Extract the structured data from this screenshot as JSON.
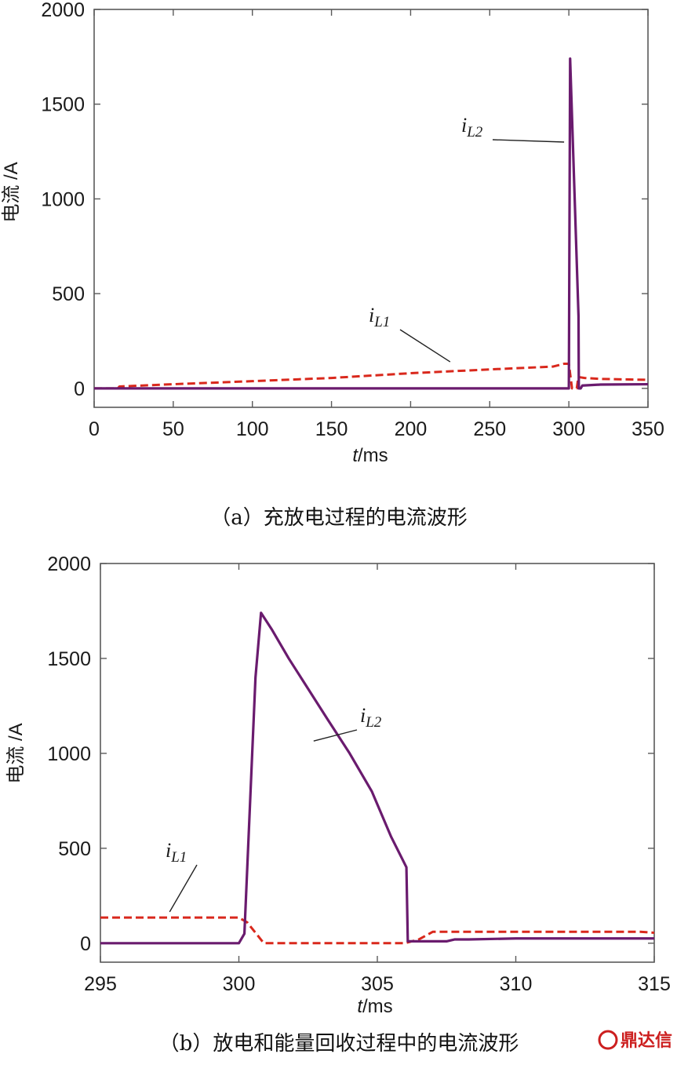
{
  "colors": {
    "iL1": "#d9281c",
    "iL2": "#6a1b6e",
    "axis": "#5a5a5a",
    "watermark": "#cc1f1f"
  },
  "watermark": {
    "text": "鼎达信",
    "icon": "badge-icon"
  },
  "chart_data": [
    {
      "type": "line",
      "caption": "（a）充放电过程的电流波形",
      "ylabel": "电流 /A",
      "xlabel_italic": "t",
      "xlabel_unit": "/ms",
      "xlim": [
        0,
        350
      ],
      "ylim": [
        -100,
        2000
      ],
      "xticks": [
        0,
        50,
        100,
        150,
        200,
        250,
        300,
        350
      ],
      "xtick_labels": [
        "0",
        "50",
        "100",
        "150",
        "200",
        "250",
        "300",
        "350"
      ],
      "yticks": [
        0,
        500,
        1000,
        1500,
        2000
      ],
      "ytick_labels": [
        "0",
        "500",
        "1000",
        "1500",
        "2000"
      ],
      "grid": false,
      "series": [
        {
          "name": "iL1",
          "label_main": "i",
          "label_sub": "L1",
          "style": "dashed",
          "points": [
            [
              0,
              0
            ],
            [
              15,
              0
            ],
            [
              16,
              10
            ],
            [
              50,
              22
            ],
            [
              100,
              38
            ],
            [
              150,
              55
            ],
            [
              200,
              80
            ],
            [
              250,
              100
            ],
            [
              290,
              115
            ],
            [
              297,
              130
            ],
            [
              300,
              130
            ],
            [
              302,
              0
            ],
            [
              305,
              0
            ],
            [
              306,
              60
            ],
            [
              310,
              55
            ],
            [
              320,
              50
            ],
            [
              350,
              45
            ]
          ]
        },
        {
          "name": "iL2",
          "label_main": "i",
          "label_sub": "L2",
          "style": "solid",
          "points": [
            [
              0,
              0
            ],
            [
              300,
              0
            ],
            [
              300.8,
              1740
            ],
            [
              306.1,
              380
            ],
            [
              306.3,
              0
            ],
            [
              307.5,
              0
            ],
            [
              308.5,
              15
            ],
            [
              320,
              20
            ],
            [
              350,
              22
            ]
          ]
        }
      ],
      "annotations": [
        {
          "series": "iL2",
          "at": [
            297,
            1300
          ]
        },
        {
          "series": "iL1",
          "at": [
            225,
            140
          ]
        }
      ]
    },
    {
      "type": "line",
      "caption": "（b）放电和能量回收过程中的电流波形",
      "ylabel": "电流 /A",
      "xlabel_italic": "t",
      "xlabel_unit": "/ms",
      "xlim": [
        295,
        315
      ],
      "ylim": [
        -100,
        2000
      ],
      "xticks": [
        295,
        300,
        305,
        310,
        315
      ],
      "xtick_labels": [
        "295",
        "300",
        "305",
        "310",
        "315"
      ],
      "yticks": [
        0,
        500,
        1000,
        1500,
        2000
      ],
      "ytick_labels": [
        "0",
        "500",
        "1000",
        "1500",
        "2000"
      ],
      "grid": false,
      "series": [
        {
          "name": "iL1",
          "label_main": "i",
          "label_sub": "L1",
          "style": "dashed",
          "points": [
            [
              295,
              135
            ],
            [
              300,
              135
            ],
            [
              300.3,
              110
            ],
            [
              300.9,
              0
            ],
            [
              306,
              0
            ],
            [
              306.5,
              20
            ],
            [
              307,
              60
            ],
            [
              310,
              60
            ],
            [
              314.5,
              60
            ],
            [
              315,
              55
            ]
          ]
        },
        {
          "name": "iL2",
          "label_main": "i",
          "label_sub": "L2",
          "style": "solid",
          "points": [
            [
              295,
              0
            ],
            [
              300,
              0
            ],
            [
              300.2,
              50
            ],
            [
              300.6,
              1400
            ],
            [
              300.8,
              1740
            ],
            [
              301.2,
              1650
            ],
            [
              301.8,
              1500
            ],
            [
              302.5,
              1340
            ],
            [
              303.2,
              1180
            ],
            [
              304,
              1000
            ],
            [
              304.8,
              800
            ],
            [
              305.5,
              560
            ],
            [
              306.05,
              400
            ],
            [
              306.1,
              10
            ],
            [
              307.5,
              10
            ],
            [
              307.8,
              20
            ],
            [
              308.3,
              20
            ],
            [
              310,
              25
            ],
            [
              315,
              25
            ]
          ]
        }
      ],
      "annotations": [
        {
          "series": "iL2",
          "at": [
            302.7,
            1065
          ]
        },
        {
          "series": "iL1",
          "at": [
            297.5,
            165
          ]
        }
      ]
    }
  ]
}
